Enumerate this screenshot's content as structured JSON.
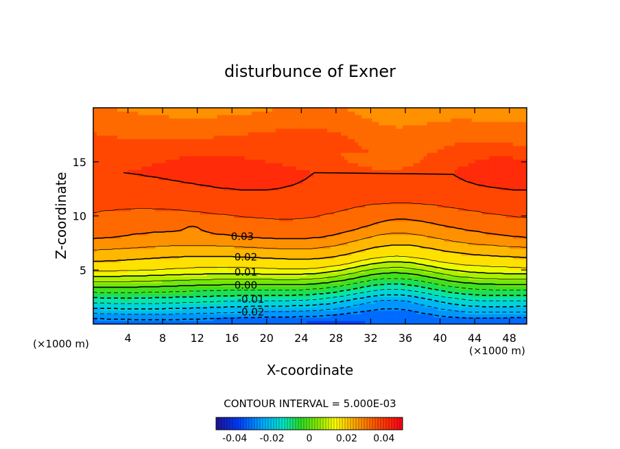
{
  "chart_data": {
    "type": "contour",
    "title": "disturbunce of Exner",
    "xlabel": "X-coordinate",
    "ylabel": "Z-coordinate",
    "x_unit_label": "(×1000 m)",
    "z_unit_label": "(×1000 m)",
    "xlim": [
      0,
      50
    ],
    "ylim": [
      0,
      20
    ],
    "x_ticks": [
      4,
      8,
      12,
      16,
      20,
      24,
      28,
      32,
      36,
      40,
      44,
      48
    ],
    "y_ticks": [
      5,
      10,
      15
    ],
    "contour_interval_text": "CONTOUR INTERVAL = 5.000E-03",
    "contour_interval": 0.005,
    "contour_labels": [
      {
        "text": "0.03",
        "x": 17.2,
        "z": 8.1
      },
      {
        "text": "0.02",
        "x": 17.6,
        "z": 6.2
      },
      {
        "text": "0.01",
        "x": 17.6,
        "z": 4.8
      },
      {
        "text": "0.00",
        "x": 17.6,
        "z": 3.6
      },
      {
        "text": "-0.01",
        "x": 18.2,
        "z": 2.3
      },
      {
        "text": "-0.02",
        "x": 18.2,
        "z": 1.1
      }
    ],
    "colorbar": {
      "min": -0.05,
      "max": 0.05,
      "tick_values": [
        -0.04,
        -0.02,
        0,
        0.02,
        0.04
      ],
      "tick_labels": [
        "-0.04",
        "-0.02",
        "0",
        "0.02",
        "0.04"
      ]
    },
    "field_model": {
      "low_levels": [
        {
          "z": 0.0,
          "value": -0.035
        },
        {
          "z": 5.0,
          "value": 0.015
        },
        {
          "z": 8.0,
          "value": 0.03
        },
        {
          "z": 11.0,
          "value": 0.037
        },
        {
          "z": 14.0,
          "value": 0.041
        },
        {
          "z": 17.0,
          "value": 0.037
        },
        {
          "z": 20.0,
          "value": 0.03
        }
      ],
      "bump_center_x": 34.5,
      "bump_width_x": 6.5
    }
  }
}
